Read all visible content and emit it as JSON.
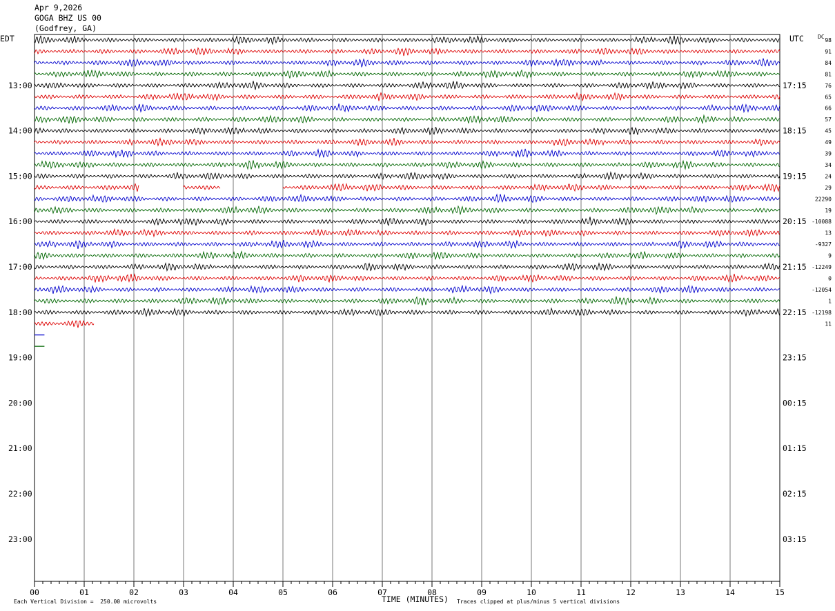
{
  "header": {
    "date": "Apr 9,2026",
    "station": "GOGA BHZ US 00",
    "location": "(Godfrey, GA)"
  },
  "labels": {
    "left_zone": "EDT",
    "right_zone": "UTC",
    "dc": "DC",
    "x_title": "TIME (MINUTES)",
    "scale_note": "Each Vertical Division =  250.00 microvolts",
    "clip_note": "Traces clipped at plus/minus 5 vertical divisions"
  },
  "colors": {
    "trace_cycle": [
      "#000000",
      "#dd0000",
      "#0000cc",
      "#006600"
    ],
    "grid": "#777777",
    "frame": "#000000"
  },
  "chart_data": {
    "type": "line",
    "title": "GOGA BHZ US 00",
    "xlabel": "TIME (MINUTES)",
    "ylabel": "",
    "xlim": [
      0,
      15
    ],
    "x_ticks": [
      "00",
      "01",
      "02",
      "03",
      "04",
      "05",
      "06",
      "07",
      "08",
      "09",
      "10",
      "11",
      "12",
      "13",
      "14",
      "15"
    ],
    "y_ticks_left": [
      "13:00",
      "14:00",
      "15:00",
      "16:00",
      "17:00",
      "18:00",
      "19:00",
      "20:00",
      "21:00",
      "22:00",
      "23:00"
    ],
    "y_ticks_right": [
      "17:15",
      "18:15",
      "19:15",
      "20:15",
      "21:15",
      "22:15",
      "23:15",
      "00:15",
      "01:15",
      "02:15",
      "03:15"
    ],
    "rows_per_hour": 4,
    "minutes_per_row": 15,
    "rows": [
      {
        "dc": "98"
      },
      {
        "dc": "91"
      },
      {
        "dc": "84"
      },
      {
        "dc": "81"
      },
      {
        "dc": "76"
      },
      {
        "dc": "65"
      },
      {
        "dc": "66"
      },
      {
        "dc": "57"
      },
      {
        "dc": "45"
      },
      {
        "dc": "49"
      },
      {
        "dc": "39"
      },
      {
        "dc": "34"
      },
      {
        "dc": "24"
      },
      {
        "dc": "29",
        "gaps": [
          [
            2.1,
            3.0
          ],
          [
            3.75,
            5.0
          ]
        ]
      },
      {
        "dc": "22290"
      },
      {
        "dc": "19"
      },
      {
        "dc": "-10088"
      },
      {
        "dc": "13"
      },
      {
        "dc": "-9327"
      },
      {
        "dc": "9"
      },
      {
        "dc": "-12249"
      },
      {
        "dc": "0"
      },
      {
        "dc": "-12054"
      },
      {
        "dc": "1"
      },
      {
        "dc": "-12198"
      },
      {
        "dc": "11",
        "end": 1.2
      },
      {
        "dc": "",
        "end": 0.2,
        "flat": true
      },
      {
        "dc": "",
        "end": 0.2,
        "flat": true
      }
    ]
  }
}
